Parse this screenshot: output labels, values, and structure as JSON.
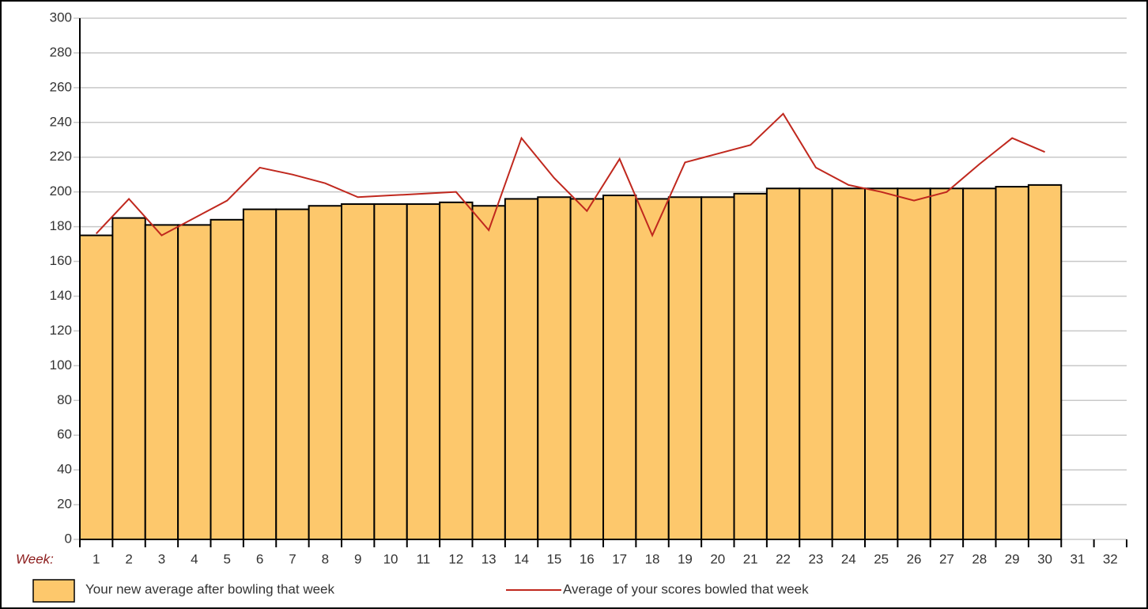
{
  "chart_data": {
    "type": "bar_line",
    "x_label": "Week:",
    "categories": [
      "1",
      "2",
      "3",
      "4",
      "5",
      "6",
      "7",
      "8",
      "9",
      "10",
      "11",
      "12",
      "13",
      "14",
      "15",
      "16",
      "17",
      "18",
      "19",
      "20",
      "21",
      "22",
      "23",
      "24",
      "25",
      "26",
      "27",
      "28",
      "29",
      "30",
      "31",
      "32"
    ],
    "series": [
      {
        "name": "Your new average after bowling that week",
        "type": "bar",
        "color": "#fdc86c",
        "values": [
          175,
          185,
          181,
          181,
          184,
          190,
          190,
          192,
          193,
          193,
          193,
          194,
          192,
          196,
          197,
          196,
          198,
          196,
          197,
          197,
          199,
          202,
          202,
          202,
          202,
          202,
          202,
          202,
          203,
          204,
          0,
          0
        ]
      },
      {
        "name": "Average of your scores bowled that week",
        "type": "line",
        "color": "#c0281e",
        "values": [
          176,
          196,
          175,
          185,
          195,
          214,
          210,
          205,
          197,
          198,
          199,
          200,
          178,
          231,
          208,
          189,
          219,
          175,
          217,
          222,
          227,
          245,
          214,
          204,
          200,
          195,
          200,
          216,
          231,
          223,
          null,
          null
        ]
      }
    ],
    "ylim": [
      0,
      300
    ],
    "yticks": [
      0,
      20,
      40,
      60,
      80,
      100,
      120,
      140,
      160,
      180,
      200,
      220,
      240,
      260,
      280,
      300
    ],
    "grid": true
  }
}
